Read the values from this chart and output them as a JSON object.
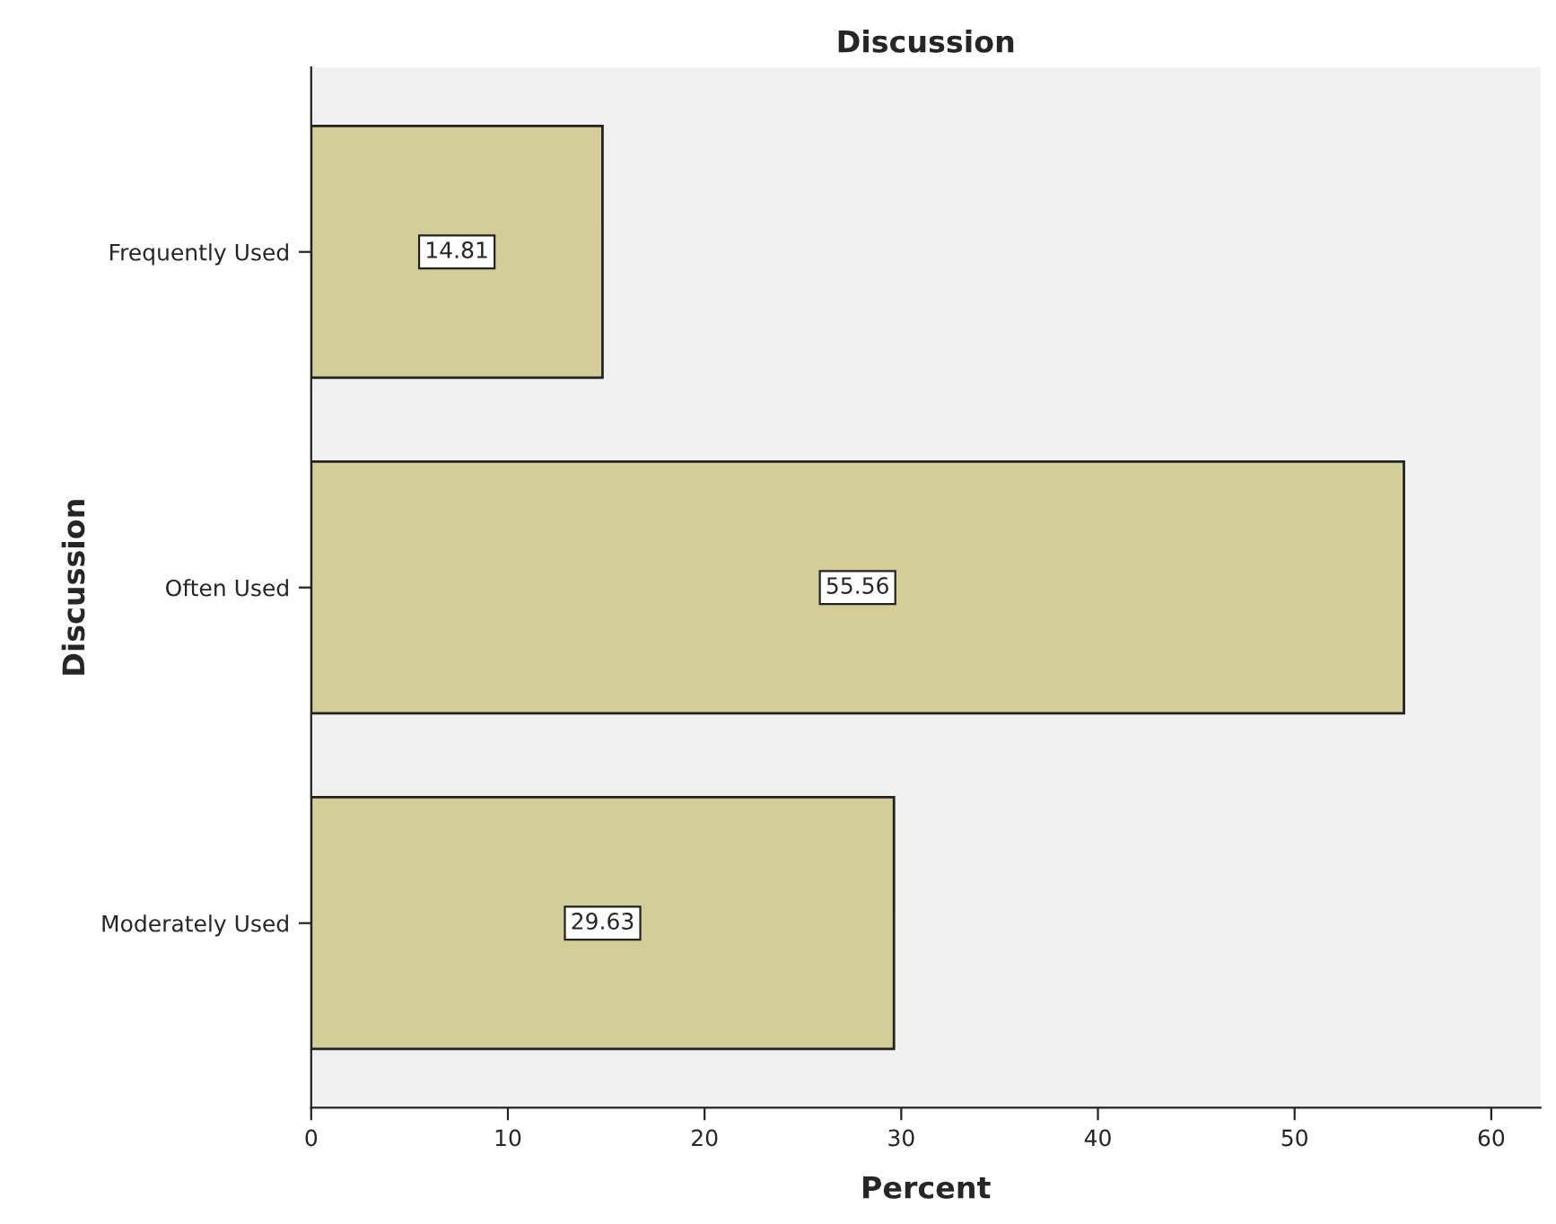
{
  "chart_data": {
    "type": "bar",
    "orientation": "horizontal",
    "title": "Discussion",
    "xlabel": "Percent",
    "ylabel": "Discussion",
    "categories": [
      "Frequently Used",
      "Often Used",
      "Moderately Used"
    ],
    "values": [
      14.81,
      55.56,
      29.63
    ],
    "color": "#d3cd98",
    "xlim": [
      0,
      62.5
    ],
    "xticks": [
      0,
      10,
      20,
      30,
      40,
      50,
      60
    ],
    "data_labels": true,
    "grid": false
  }
}
